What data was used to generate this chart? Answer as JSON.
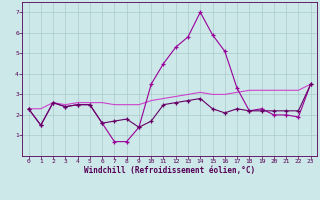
{
  "x": [
    0,
    1,
    2,
    3,
    4,
    5,
    6,
    7,
    8,
    9,
    10,
    11,
    12,
    13,
    14,
    15,
    16,
    17,
    18,
    19,
    20,
    21,
    22,
    23
  ],
  "line1": [
    2.3,
    1.5,
    2.6,
    2.4,
    2.5,
    2.5,
    1.6,
    0.7,
    0.7,
    1.4,
    3.5,
    4.5,
    5.3,
    5.8,
    7.0,
    5.9,
    5.1,
    3.3,
    2.2,
    2.3,
    2.0,
    2.0,
    1.9,
    3.5
  ],
  "line2": [
    2.3,
    1.5,
    2.6,
    2.4,
    2.5,
    2.5,
    1.6,
    1.7,
    1.8,
    1.4,
    1.7,
    2.5,
    2.6,
    2.7,
    2.8,
    2.3,
    2.1,
    2.3,
    2.2,
    2.2,
    2.2,
    2.2,
    2.2,
    3.5
  ],
  "line3": [
    2.3,
    2.3,
    2.6,
    2.5,
    2.6,
    2.6,
    2.6,
    2.5,
    2.5,
    2.5,
    2.7,
    2.8,
    2.9,
    3.0,
    3.1,
    3.0,
    3.0,
    3.1,
    3.2,
    3.2,
    3.2,
    3.2,
    3.2,
    3.5
  ],
  "line_color1": "#990099",
  "line_color2": "#660066",
  "line_color3": "#cc44cc",
  "bg_color": "#cce8e8",
  "grid_color": "#aacccc",
  "xlabel": "Windchill (Refroidissement éolien,°C)",
  "ylim": [
    0,
    7.5
  ],
  "xlim": [
    -0.5,
    23.5
  ],
  "yticks": [
    1,
    2,
    3,
    4,
    5,
    6,
    7
  ],
  "xticks": [
    0,
    1,
    2,
    3,
    4,
    5,
    6,
    7,
    8,
    9,
    10,
    11,
    12,
    13,
    14,
    15,
    16,
    17,
    18,
    19,
    20,
    21,
    22,
    23
  ]
}
